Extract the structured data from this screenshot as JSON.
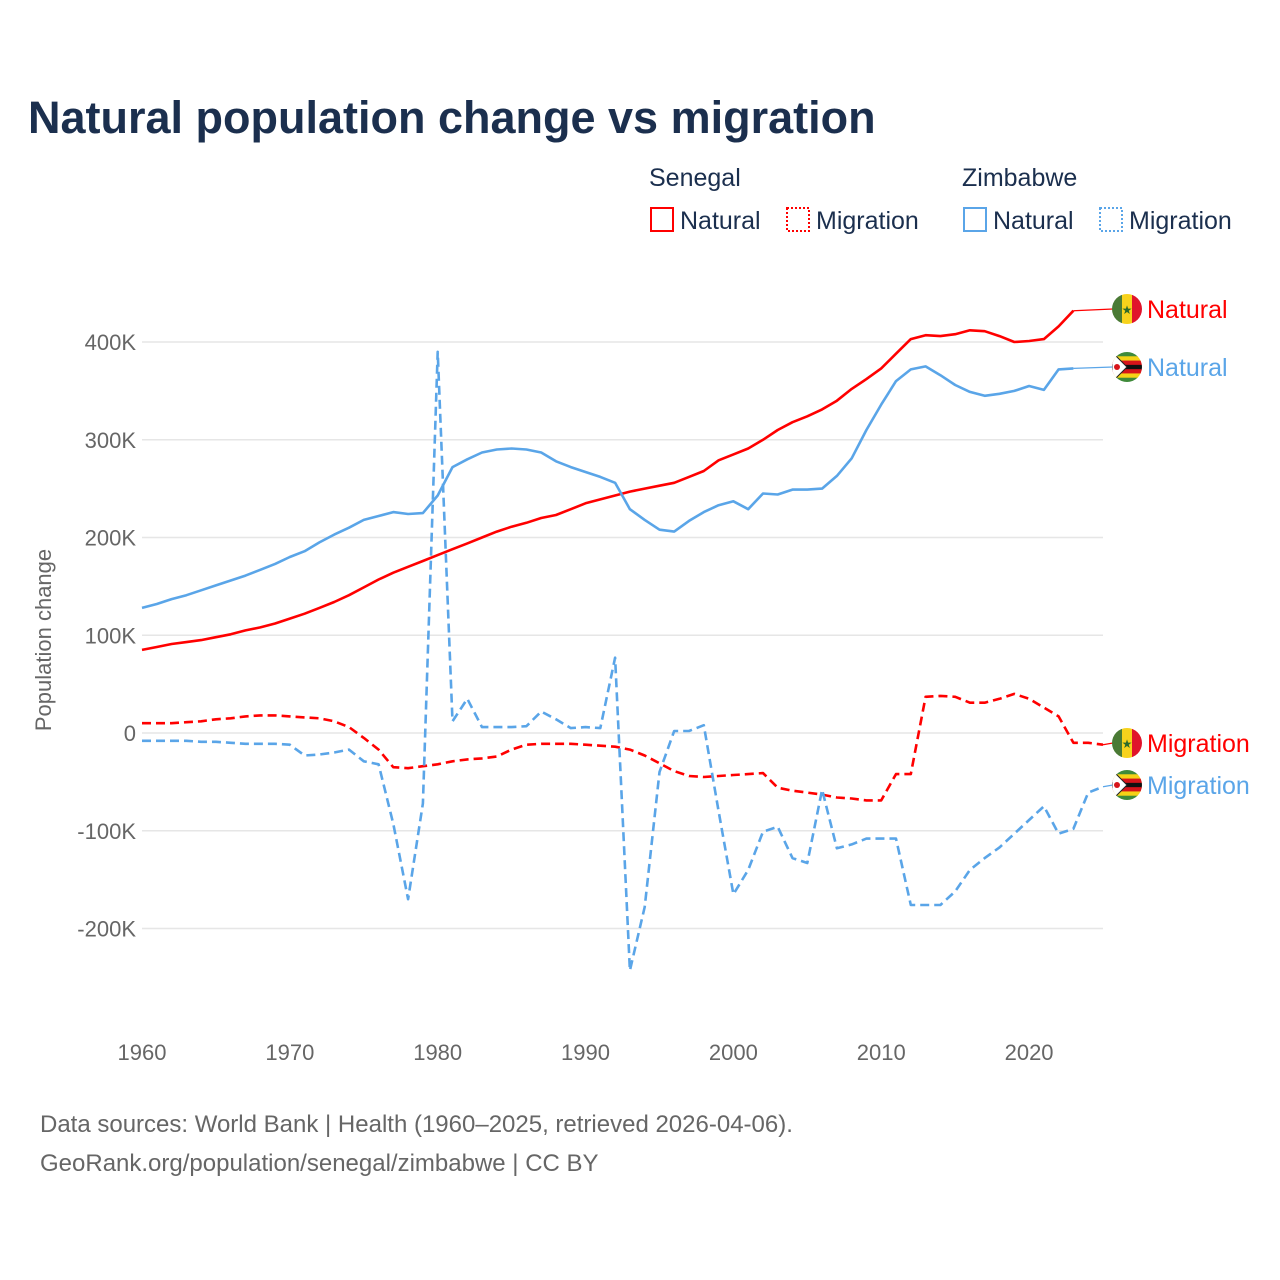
{
  "chart_data": {
    "type": "line",
    "title": "Natural population change vs migration",
    "xlabel": "",
    "ylabel": "Population change",
    "xlim": [
      1960,
      2025
    ],
    "ylim": [
      -250000,
      450000
    ],
    "grid": true,
    "xticks": [
      1960,
      1970,
      1980,
      1990,
      2000,
      2010,
      2020
    ],
    "xtick_labels": [
      "1960",
      "1970",
      "1980",
      "1990",
      "2000",
      "2010",
      "2020"
    ],
    "yticks": [
      -200000,
      -100000,
      0,
      100000,
      200000,
      300000,
      400000
    ],
    "ytick_labels": [
      "-200K",
      "-100K",
      "0",
      "100K",
      "200K",
      "300K",
      "400K"
    ],
    "legend": {
      "placement": "top-right",
      "groups": [
        {
          "country": "Senegal",
          "entries": [
            "Natural",
            "Migration"
          ]
        },
        {
          "country": "Zimbabwe",
          "entries": [
            "Natural",
            "Migration"
          ]
        }
      ]
    },
    "x_start": 1960,
    "series": [
      {
        "name": "Senegal Natural",
        "country": "Senegal",
        "kind": "Natural",
        "color": "#ff0000",
        "dashed": false,
        "end_label": "Natural",
        "values": [
          85000,
          88000,
          91000,
          93000,
          95000,
          98000,
          101000,
          105000,
          108000,
          112000,
          117000,
          122000,
          128000,
          134000,
          141000,
          149000,
          157000,
          164000,
          170000,
          176000,
          182000,
          188000,
          194000,
          200000,
          206000,
          211000,
          215000,
          220000,
          223000,
          229000,
          235000,
          239000,
          243000,
          247000,
          250000,
          253000,
          256000,
          262000,
          268000,
          279000,
          285000,
          291000,
          300000,
          310000,
          318000,
          324000,
          331000,
          340000,
          352000,
          362000,
          373000,
          388000,
          403000,
          407000,
          406000,
          408000,
          412000,
          411000,
          406000,
          400000,
          401000,
          403000,
          416000,
          432000,
          null,
          null
        ]
      },
      {
        "name": "Senegal Migration",
        "country": "Senegal",
        "kind": "Migration",
        "color": "#ff0000",
        "dashed": true,
        "end_label": "Migration",
        "values": [
          10000,
          10000,
          10000,
          11000,
          12000,
          14000,
          15000,
          17000,
          18000,
          18000,
          17000,
          16000,
          15000,
          12000,
          6000,
          -5000,
          -17000,
          -35000,
          -36000,
          -34000,
          -32000,
          -29000,
          -27000,
          -26000,
          -24000,
          -17000,
          -12000,
          -11000,
          -11000,
          -11000,
          -12000,
          -13000,
          -14000,
          -17000,
          -23000,
          -31000,
          -39000,
          -44000,
          -45000,
          -44000,
          -43000,
          -42000,
          -41000,
          -56000,
          -59000,
          -61000,
          -63000,
          -66000,
          -67000,
          -69000,
          -69000,
          -42000,
          -42000,
          37000,
          38000,
          37000,
          31000,
          31000,
          35000,
          40000,
          35000,
          26000,
          17000,
          -10000,
          -10000,
          -12000
        ]
      },
      {
        "name": "Zimbabwe Natural",
        "country": "Zimbabwe",
        "kind": "Natural",
        "color": "#5aa5e8",
        "dashed": false,
        "end_label": "Natural",
        "values": [
          128000,
          132000,
          137000,
          141000,
          146000,
          151000,
          156000,
          161000,
          167000,
          173000,
          180000,
          186000,
          195000,
          203000,
          210000,
          218000,
          222000,
          226000,
          224000,
          225000,
          243000,
          272000,
          280000,
          287000,
          290000,
          291000,
          290000,
          287000,
          278000,
          272000,
          267000,
          262000,
          256000,
          229000,
          218000,
          208000,
          206000,
          217000,
          226000,
          233000,
          237000,
          229000,
          245000,
          244000,
          249000,
          249000,
          250000,
          263000,
          281000,
          310000,
          336000,
          360000,
          372000,
          375000,
          366000,
          356000,
          349000,
          345000,
          347000,
          350000,
          355000,
          351000,
          372000,
          373000,
          null,
          null
        ]
      },
      {
        "name": "Zimbabwe Migration",
        "country": "Zimbabwe",
        "kind": "Migration",
        "color": "#5aa5e8",
        "dashed": true,
        "end_label": "Migration",
        "values": [
          -8000,
          -8000,
          -8000,
          -8000,
          -9000,
          -9000,
          -10000,
          -11000,
          -11000,
          -11000,
          -12000,
          -23000,
          -22000,
          -20000,
          -17000,
          -29000,
          -32000,
          -93000,
          -170000,
          -72000,
          390000,
          12000,
          35000,
          6000,
          6000,
          6000,
          7000,
          22000,
          14000,
          5000,
          6000,
          5000,
          77000,
          -243000,
          -178000,
          -40000,
          2000,
          2000,
          8000,
          -80000,
          -165000,
          -140000,
          -101000,
          -96000,
          -128000,
          -133000,
          -58000,
          -118000,
          -114000,
          -108000,
          -108000,
          -108000,
          -176000,
          -176000,
          -176000,
          -162000,
          -140000,
          -128000,
          -117000,
          -103000,
          -89000,
          -75000,
          -103000,
          -98000,
          -61000,
          -55000
        ]
      }
    ]
  },
  "footer": {
    "source": "Data sources: World Bank | Health (1960–2025, retrieved 2026-04-06).",
    "url": "GeoRank.org/population/senegal/zimbabwe | CC BY"
  }
}
